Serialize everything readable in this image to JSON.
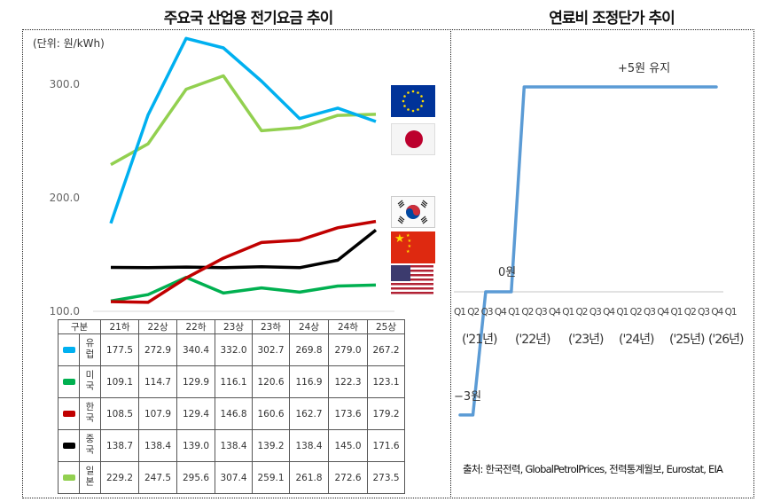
{
  "titles": {
    "left": "주요국 산업용 전기요금 추이",
    "right": "연료비 조정단가 추이"
  },
  "chart_data": [
    {
      "type": "line",
      "title": "주요국 산업용 전기요금 추이",
      "unit_label": "(단위: 원/kWh)",
      "ylabel": "원/kWh",
      "ylim": [
        100,
        345
      ],
      "yticks": [
        "300.0",
        "200.0",
        "100.0"
      ],
      "categories": [
        "21하",
        "22상",
        "22하",
        "23상",
        "23하",
        "24상",
        "24하",
        "25상"
      ],
      "series": [
        {
          "name": "유럽",
          "color": "#00B0F0",
          "flag": "eu-flag",
          "values": [
            177.5,
            272.9,
            340.4,
            332.0,
            302.7,
            269.8,
            279.0,
            267.2
          ]
        },
        {
          "name": "미국",
          "color": "#00B050",
          "flag": "us-flag",
          "values": [
            109.1,
            114.7,
            129.9,
            116.1,
            120.6,
            116.9,
            122.3,
            123.1
          ]
        },
        {
          "name": "한국",
          "color": "#C00000",
          "flag": "kr-flag",
          "values": [
            108.5,
            107.9,
            129.4,
            146.8,
            160.6,
            162.7,
            173.6,
            179.2
          ]
        },
        {
          "name": "중국",
          "color": "#000000",
          "flag": "cn-flag",
          "values": [
            138.7,
            138.4,
            139.0,
            138.4,
            139.2,
            138.4,
            145.0,
            171.6
          ]
        },
        {
          "name": "일본",
          "color": "#92D050",
          "flag": "jp-flag",
          "values": [
            229.2,
            247.5,
            295.6,
            307.4,
            259.1,
            261.8,
            272.6,
            273.5
          ]
        }
      ],
      "table": {
        "header_label": "구분",
        "grid": true
      },
      "legend_position": "right (flag icons)"
    },
    {
      "type": "line",
      "title": "연료비 조정단가 추이",
      "x": [
        "Q1'21",
        "Q2'21",
        "Q3'21",
        "Q4'21",
        "Q1'22",
        "Q2'22",
        "Q3'22",
        "Q4'22",
        "Q1'23",
        "Q2'23",
        "Q3'23",
        "Q4'23",
        "Q1'24",
        "Q2'24",
        "Q3'24",
        "Q4'24",
        "Q1'25",
        "Q2'25",
        "Q3'25",
        "Q4'25",
        "Q1'26"
      ],
      "tick_labels": [
        "Q1",
        "Q2",
        "Q3",
        "Q4",
        "Q1",
        "Q2",
        "Q3",
        "Q4",
        "Q1",
        "Q2",
        "Q3",
        "Q4",
        "Q1",
        "Q2",
        "Q3",
        "Q4",
        "Q1",
        "Q2",
        "Q3",
        "Q4",
        "Q1"
      ],
      "year_labels": [
        "('21년)",
        "('22년)",
        "('23년)",
        "('24년)",
        "('25년)",
        "('26년)"
      ],
      "series": [
        {
          "name": "연료비 조정단가",
          "color": "#5B9BD5",
          "values": [
            -3,
            -3,
            0,
            0,
            0,
            5,
            5,
            5,
            5,
            5,
            5,
            5,
            5,
            5,
            5,
            5,
            5,
            5,
            5,
            5,
            5
          ]
        }
      ],
      "annotations": [
        "-3원",
        "0원",
        "+5원 유지"
      ],
      "ylim": [
        -3,
        5
      ],
      "grid": false
    }
  ],
  "right_chart": {
    "label_minus3": "−3원",
    "label_zero": "0원",
    "label_plus5": "+5원 유지",
    "q_ticks": "Q1 Q2 Q3 Q4 Q1 Q2 Q3 Q4 Q1 Q2 Q3 Q4 Q1 Q2 Q3 Q4 Q1 Q2 Q3 Q4 Q1",
    "years": [
      "('21년)",
      "('22년)",
      "('23년)",
      "('24년)",
      "('25년)",
      "('26년)"
    ]
  },
  "table_rows": [
    {
      "name": "유럽",
      "color": "#00B0F0",
      "values": [
        "177.5",
        "272.9",
        "340.4",
        "332.0",
        "302.7",
        "269.8",
        "279.0",
        "267.2"
      ]
    },
    {
      "name": "미국",
      "color": "#00B050",
      "values": [
        "109.1",
        "114.7",
        "129.9",
        "116.1",
        "120.6",
        "116.9",
        "122.3",
        "123.1"
      ]
    },
    {
      "name": "한국",
      "color": "#C00000",
      "values": [
        "108.5",
        "107.9",
        "129.4",
        "146.8",
        "160.6",
        "162.7",
        "173.6",
        "179.2"
      ]
    },
    {
      "name": "중국",
      "color": "#000000",
      "values": [
        "138.7",
        "138.4",
        "139.0",
        "138.4",
        "139.2",
        "138.4",
        "145.0",
        "171.6"
      ]
    },
    {
      "name": "일본",
      "color": "#92D050",
      "values": [
        "229.2",
        "247.5",
        "295.6",
        "307.4",
        "259.1",
        "261.8",
        "272.6",
        "273.5"
      ]
    }
  ],
  "table_header": [
    "구분",
    "21하",
    "22상",
    "22하",
    "23상",
    "23하",
    "24상",
    "24하",
    "25상"
  ],
  "unit_label": "(단위: 원/kWh)",
  "yticks": [
    "300.0",
    "200.0",
    "100.0"
  ],
  "source": "출처: 한국전력, GlobalPetrolPrices, 전력통계월보, Eurostat, EIA"
}
